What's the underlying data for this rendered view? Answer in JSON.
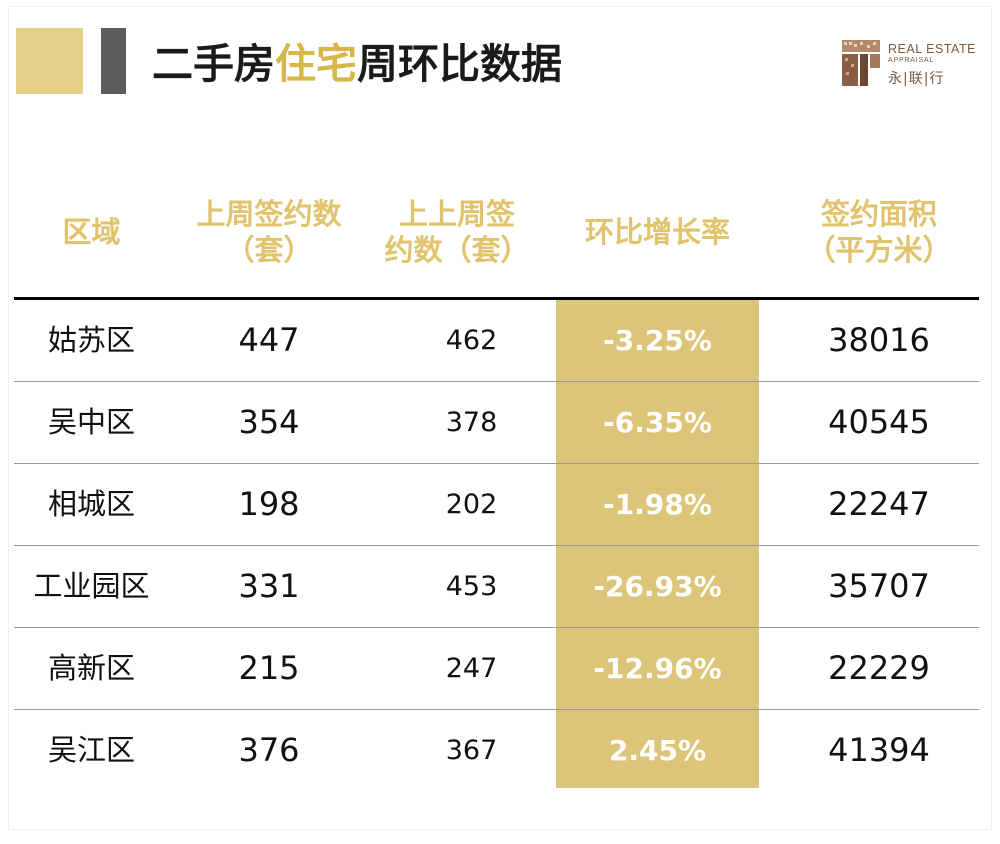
{
  "header": {
    "title_part1": "二手房",
    "title_highlight": "住宅",
    "title_part2": "周环比数据"
  },
  "logo": {
    "line1": "REAL ESTATE",
    "line2": "APPRAISAL",
    "cn": "永|联|行"
  },
  "table": {
    "columns": [
      {
        "line1": "区域",
        "line2": ""
      },
      {
        "line1": "上周签约数",
        "line2": "（套）"
      },
      {
        "line1": "上上周签",
        "line2": "约数（套）"
      },
      {
        "line1": "环比增长率",
        "line2": ""
      },
      {
        "line1": "签约面积",
        "line2": "（平方米）"
      }
    ],
    "rows": [
      {
        "district": "姑苏区",
        "last_week": "447",
        "prev_week": "462",
        "rate": "-3.25%",
        "area": "38016"
      },
      {
        "district": "吴中区",
        "last_week": "354",
        "prev_week": "378",
        "rate": "-6.35%",
        "area": "40545"
      },
      {
        "district": "相城区",
        "last_week": "198",
        "prev_week": "202",
        "rate": "-1.98%",
        "area": "22247"
      },
      {
        "district": "工业园区",
        "last_week": "331",
        "prev_week": "453",
        "rate": "-26.93%",
        "area": "35707"
      },
      {
        "district": "高新区",
        "last_week": "215",
        "prev_week": "247",
        "rate": "-12.96%",
        "area": "22229"
      },
      {
        "district": "吴江区",
        "last_week": "376",
        "prev_week": "367",
        "rate": "2.45%",
        "area": "41394"
      }
    ]
  },
  "colors": {
    "accent_gold": "#e5d08a",
    "header_text_gold": "#e0c36c",
    "title_highlight": "#d9b64a",
    "highlight_column": "#dcc579",
    "dark_bar": "#5c5c5c",
    "logo_brown": "#7a5a40"
  }
}
